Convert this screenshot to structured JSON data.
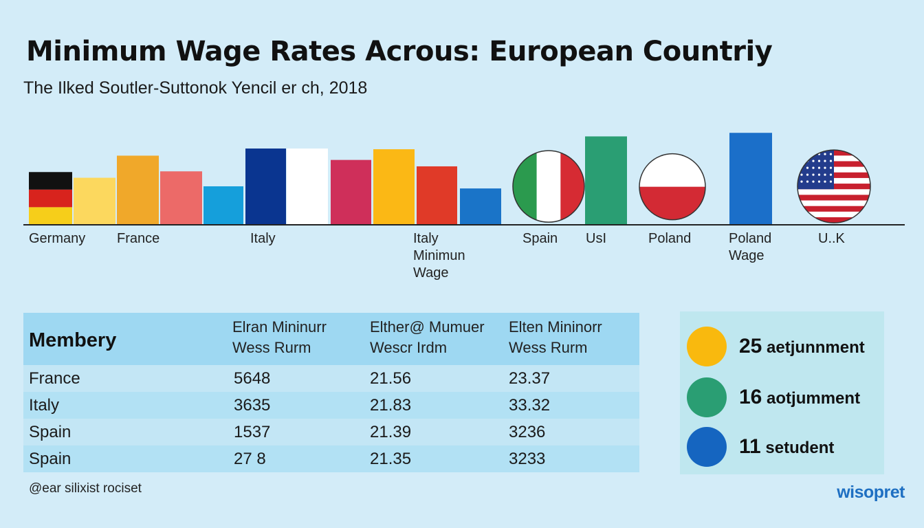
{
  "title": "Minimum Wage Rates Acrous: European Countriy",
  "subtitle": "The Ilked Soutler-Suttonok Yencil er ch, 2018",
  "chart_data": {
    "type": "bar",
    "title": "Minimum Wage Rates Acrous: European Countriy",
    "subtitle": "The Ilked Soutler-Suttonok Yencil er ch, 2018",
    "xlabel": "",
    "ylabel": "",
    "ylim": [
      0,
      135
    ],
    "grid": false,
    "legend": "none",
    "bars": [
      {
        "value": 74,
        "color": "#f6ce1a",
        "style": "flag-germany"
      },
      {
        "value": 66,
        "color": "#fcd85e"
      },
      {
        "value": 97,
        "color": "#f0a82a"
      },
      {
        "value": 75,
        "color": "#ec6a68"
      },
      {
        "value": 54,
        "color": "#159fdb"
      },
      {
        "value": 107,
        "color": "#0a3590"
      },
      {
        "value": 107,
        "color": "#ffffff"
      },
      {
        "value": 91,
        "color": "#cf2f5a"
      },
      {
        "value": 106,
        "color": "#fbb815"
      },
      {
        "value": 82,
        "color": "#e03a28"
      },
      {
        "value": 51,
        "color": "#1a74c8"
      },
      {
        "value": 100,
        "color": "#2c9e6c",
        "style": "flag-italy-circle"
      },
      {
        "value": 124,
        "color": "#2a9e73"
      },
      {
        "value": 99,
        "color": "#d32a34",
        "style": "flag-poland-circle"
      },
      {
        "value": 129,
        "color": "#1b6fc9"
      },
      {
        "value": 100,
        "color": "#c8202e",
        "style": "flag-usa-circle"
      }
    ],
    "labels": [
      {
        "text": "Germany"
      },
      {
        "text": "France"
      },
      {
        "text": "Italy"
      },
      {
        "text": "Italy\nMinimun\nWage"
      },
      {
        "text": "Spain"
      },
      {
        "text": "UsI"
      },
      {
        "text": "Poland"
      },
      {
        "text": "Poland\nWage"
      },
      {
        "text": "U..K"
      }
    ]
  },
  "table": {
    "headers": [
      "Membery",
      "Elran Mininurr\nWess Rurm",
      "Elther@ Mumuer\nWescr Irdm",
      "Elten Mininorr\nWess Rurm"
    ],
    "rows": [
      [
        "France",
        "5648",
        "21.56",
        "23.37"
      ],
      [
        "Italy",
        "3635",
        "21.83",
        "33.32"
      ],
      [
        "Spain",
        "1537",
        "21.39",
        "3236"
      ],
      [
        "Spain",
        "27  8",
        "21.35",
        "3233"
      ]
    ]
  },
  "legend_panel": {
    "items": [
      {
        "number": "25",
        "text": "aetjunnment",
        "color": "#f9b90e"
      },
      {
        "number": "16",
        "text": "aotjumment",
        "color": "#2a9e73"
      },
      {
        "number": "11",
        "text": "setudent",
        "color": "#1565c0"
      }
    ]
  },
  "footer": {
    "note": "@ear silixist rociset",
    "brand": "wisopret"
  }
}
